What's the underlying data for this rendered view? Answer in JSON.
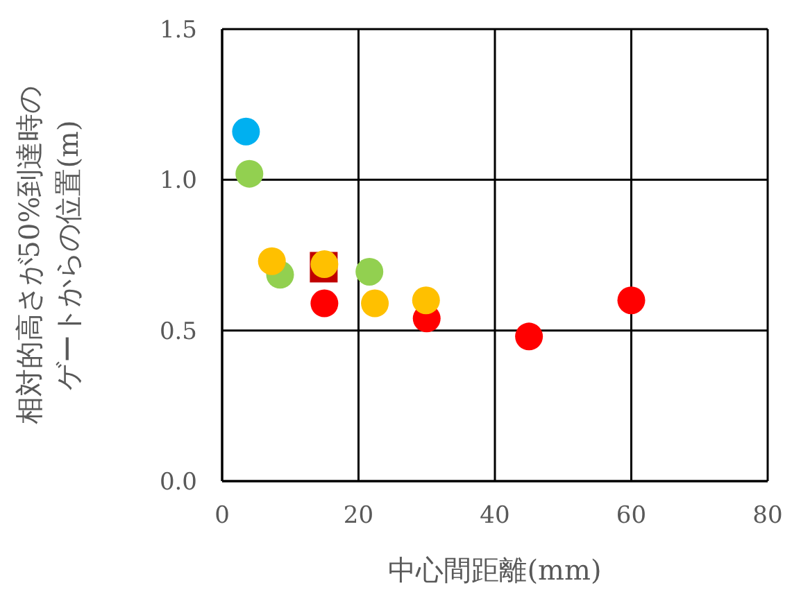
{
  "chart_data": {
    "type": "scatter",
    "xlabel": "中心間距離(mm)",
    "ylabel": "相対的高さが50%到達時のゲートからの位置(m)",
    "xlim": [
      0,
      80
    ],
    "ylim": [
      0,
      1.5
    ],
    "xticks": [
      0,
      20,
      40,
      60,
      80
    ],
    "yticks": [
      {
        "value": 0,
        "label": "0.0"
      },
      {
        "value": 0.5,
        "label": "0.5"
      },
      {
        "value": 1,
        "label": "1.0"
      },
      {
        "value": 1.5,
        "label": "1.5"
      }
    ],
    "grid": true,
    "series": [
      {
        "color": "#c00000",
        "marker": "square",
        "x": [
          14.9
        ],
        "values": [
          0.71
        ]
      },
      {
        "color": "#00b0f0",
        "marker": "circle",
        "x": [
          3.5
        ],
        "values": [
          1.16
        ]
      },
      {
        "color": "#92d050",
        "marker": "circle",
        "x": [
          4,
          8.5,
          21.6
        ],
        "values": [
          1.02,
          0.685,
          0.695
        ]
      },
      {
        "color": "#ff0000",
        "marker": "circle",
        "x": [
          15,
          30,
          45,
          60
        ],
        "values": [
          0.59,
          0.54,
          0.48,
          0.6
        ]
      },
      {
        "color": "#ffc000",
        "marker": "circle",
        "x": [
          7.3,
          15,
          22.4,
          29.9
        ],
        "values": [
          0.73,
          0.72,
          0.59,
          0.6
        ]
      }
    ]
  }
}
